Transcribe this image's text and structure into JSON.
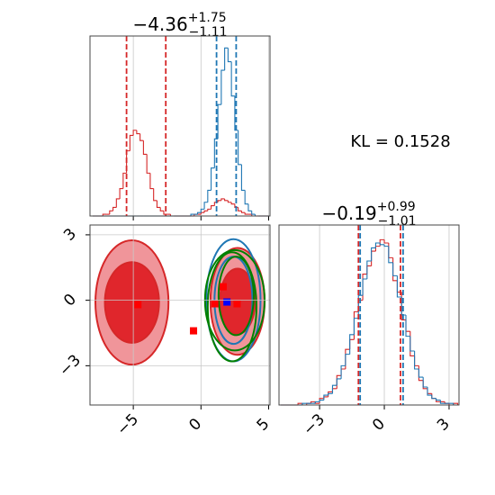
{
  "annotation": "KL = 0.1528",
  "chart_data": [
    {
      "type": "histogram",
      "title": "−4.36",
      "title_sup": "+1.75",
      "title_sub": "−1.11",
      "bins": [
        -8,
        -7.75,
        -7.5,
        -7.25,
        -7,
        -6.75,
        -6.5,
        -6.25,
        -6,
        -5.75,
        -5.5,
        -5.25,
        -5,
        -4.75,
        -4.5,
        -4.25,
        -4,
        -3.75,
        -3.5,
        -3.25,
        -3,
        -2.75,
        -2.5,
        -2.25,
        -2,
        -1.75,
        -1.5,
        -1.25,
        -1,
        -0.75,
        -0.5,
        -0.25,
        0,
        0.25,
        0.5,
        0.75,
        1,
        1.25,
        1.5,
        1.75,
        2,
        2.25,
        2.5,
        2.75,
        3,
        3.25,
        3.5,
        3.75,
        4,
        4.25,
        4.5,
        4.75,
        5
      ],
      "series": [
        {
          "color": "#d62728",
          "values": [
            0,
            0,
            0,
            1,
            1,
            3,
            5,
            10,
            16,
            25,
            38,
            47,
            50,
            48,
            44,
            36,
            25,
            16,
            9,
            5,
            3,
            1,
            1,
            0,
            0,
            0,
            0,
            0,
            0,
            0,
            1,
            1,
            2,
            3,
            4,
            6,
            8,
            9,
            10,
            9,
            8,
            7,
            5,
            3,
            2,
            1,
            1,
            0,
            0,
            0,
            0,
            0
          ]
        },
        {
          "color": "#1f77b4",
          "values": [
            0,
            0,
            0,
            0,
            0,
            0,
            0,
            0,
            0,
            0,
            0,
            0,
            0,
            0,
            0,
            0,
            0,
            0,
            0,
            0,
            0,
            0,
            0,
            0,
            0,
            0,
            0,
            0,
            0,
            1,
            1,
            2,
            4,
            8,
            15,
            28,
            45,
            65,
            85,
            98,
            90,
            70,
            50,
            30,
            15,
            7,
            3,
            1,
            0,
            0,
            0,
            0
          ]
        }
      ],
      "quantiles": [
        {
          "color": "#d62728",
          "values": [
            -5.5,
            -2.6
          ]
        },
        {
          "color": "#1f77b4",
          "values": [
            1.15,
            2.6
          ]
        }
      ],
      "xlim": [
        -8.2,
        5.1
      ],
      "xticks": [
        -5,
        0,
        5
      ],
      "ylim": [
        0,
        105
      ],
      "grid": true
    },
    {
      "type": "contour",
      "xlim": [
        -8.2,
        5.1
      ],
      "ylim": [
        -4.8,
        3.45
      ],
      "xticks": [
        {
          "value": -5,
          "label": "−5"
        },
        0,
        5
      ],
      "yticks": [
        {
          "value": -3,
          "label": "−3"
        },
        0,
        3
      ],
      "grid": true,
      "ellipses": [
        {
          "stroke": "#d62728",
          "fill": "#f0959a",
          "cx": -5.1,
          "cy": -0.1,
          "rx": 2.7,
          "ry": 2.85
        },
        {
          "stroke": "#d62728",
          "fill": "#e0262c",
          "cx": -5.1,
          "cy": -0.1,
          "rx": 2.0,
          "ry": 1.85
        },
        {
          "stroke": "#d62728",
          "fill": "#f0959a",
          "cx": 2.7,
          "cy": -0.05,
          "rx": 2.0,
          "ry": 2.45
        },
        {
          "stroke": "#d62728",
          "fill": "#e0262c",
          "cx": 2.7,
          "cy": -0.05,
          "rx": 1.3,
          "ry": 1.5
        },
        {
          "stroke": "#1f77b4",
          "fill": "none",
          "cx": 2.4,
          "cy": 0,
          "rx": 2.0,
          "ry": 2.8
        },
        {
          "stroke": "#1f77b4",
          "fill": "none",
          "cx": 2.4,
          "cy": 0,
          "rx": 1.4,
          "ry": 2.0
        },
        {
          "stroke": "#008000",
          "fill": "none",
          "cx": 2.5,
          "cy": 0,
          "rx": 2.2,
          "ry": 2.3
        },
        {
          "stroke": "#008000",
          "fill": "none",
          "cx": 2.3,
          "cy": -0.3,
          "rx": 1.8,
          "ry": 2.5
        },
        {
          "stroke": "#008000",
          "fill": "none",
          "cx": 2.6,
          "cy": 0.2,
          "rx": 1.3,
          "ry": 1.8
        }
      ],
      "points": [
        {
          "color": "#ff0000",
          "x": [
            -4.66,
            -0.55,
            1.64,
            1.03,
            2.67
          ],
          "y": [
            -0.2,
            -1.4,
            0.62,
            -0.16,
            -0.16
          ]
        },
        {
          "color": "#0000ff",
          "x": [
            1.92
          ],
          "y": [
            -0.08
          ]
        }
      ]
    },
    {
      "type": "histogram",
      "title": "−0.19",
      "title_sup": "+0.99",
      "title_sub": "−1.01",
      "bins": [
        -4.8,
        -4.6,
        -4.4,
        -4.2,
        -4,
        -3.8,
        -3.6,
        -3.4,
        -3.2,
        -3,
        -2.8,
        -2.6,
        -2.4,
        -2.2,
        -2,
        -1.8,
        -1.6,
        -1.4,
        -1.2,
        -1,
        -0.8,
        -0.6,
        -0.4,
        -0.2,
        0,
        0.2,
        0.4,
        0.6,
        0.8,
        1,
        1.2,
        1.4,
        1.6,
        1.8,
        2,
        2.2,
        2.4,
        2.6,
        2.8,
        3,
        3.2,
        3.4
      ],
      "series": [
        {
          "color": "#d62728",
          "values": [
            0,
            0,
            0,
            0,
            1,
            0,
            1,
            2,
            1,
            4,
            5,
            8,
            10,
            18,
            22,
            34,
            40,
            57,
            64,
            80,
            85,
            94,
            97,
            101,
            99,
            90,
            76,
            69,
            52,
            45,
            30,
            24,
            15,
            10,
            7,
            4,
            2,
            2,
            1,
            0,
            1
          ]
        },
        {
          "color": "#1f77b4",
          "values": [
            0,
            0,
            0,
            0,
            0,
            1,
            1,
            1,
            2,
            3,
            6,
            7,
            12,
            16,
            24,
            31,
            43,
            53,
            67,
            77,
            88,
            96,
            99,
            98,
            97,
            87,
            79,
            66,
            55,
            42,
            33,
            22,
            17,
            11,
            6,
            4,
            3,
            1,
            1,
            1,
            0
          ]
        }
      ],
      "quantiles": [
        {
          "color": "#d62728",
          "values": [
            -1.2,
            0.75
          ]
        },
        {
          "color": "#1f77b4",
          "values": [
            -1.12,
            0.87
          ]
        }
      ],
      "xlim": [
        -4.88,
        3.46
      ],
      "xticks": [
        {
          "value": -3,
          "label": "−3"
        },
        0,
        3
      ],
      "ylim": [
        0,
        110
      ],
      "grid": true
    }
  ]
}
